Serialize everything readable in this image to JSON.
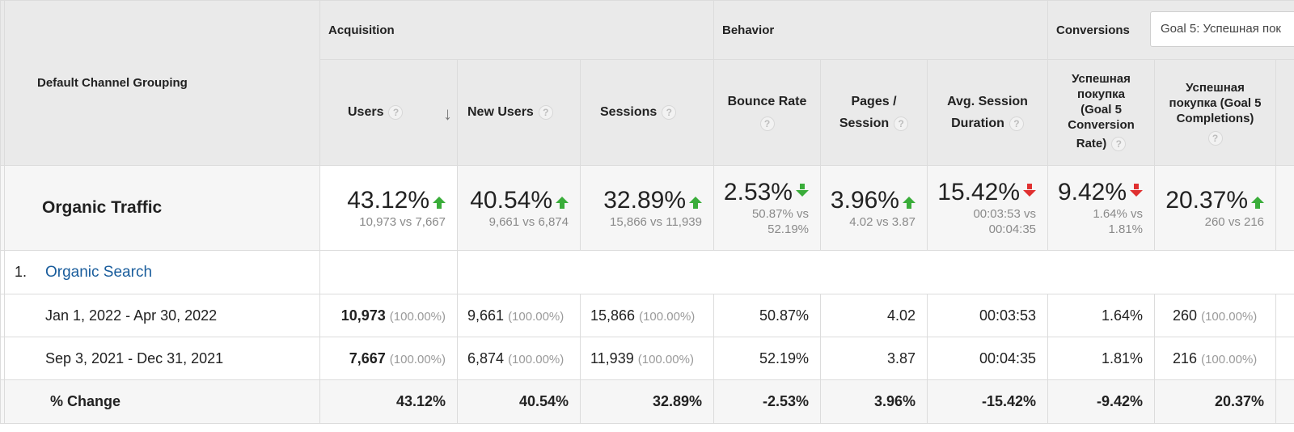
{
  "header": {
    "dimension_label": "Default Channel Grouping",
    "groups": {
      "acquisition": "Acquisition",
      "behavior": "Behavior",
      "conversions": "Conversions"
    },
    "goal_select": "Goal 5: Успешная пок",
    "columns": {
      "users": "Users",
      "new_users": "New Users",
      "sessions": "Sessions",
      "bounce_rate": "Bounce Rate",
      "pages_session_1": "Pages /",
      "pages_session_2": "Session",
      "avg_session_1": "Avg. Session",
      "avg_session_2": "Duration",
      "goal_rate_1": "Успешная",
      "goal_rate_2": "покупка",
      "goal_rate_3": "(Goal 5",
      "goal_rate_4": "Conversion",
      "goal_rate_5": "Rate)",
      "goal_comp_1": "Успешная",
      "goal_comp_2": "покупка (Goal 5",
      "goal_comp_3": "Completions)"
    },
    "help_glyph": "?",
    "sort_glyph": "↓"
  },
  "summary": {
    "label": "Organic Traffic",
    "users": {
      "value": "43.12%",
      "compare": "10,973 vs 7,667",
      "trend": "up-green"
    },
    "new_users": {
      "value": "40.54%",
      "compare": "9,661 vs 6,874",
      "trend": "up-green"
    },
    "sessions": {
      "value": "32.89%",
      "compare": "15,866 vs 11,939",
      "trend": "up-green"
    },
    "bounce_rate": {
      "value": "2.53%",
      "compare_1": "50.87% vs",
      "compare_2": "52.19%",
      "trend": "down-green"
    },
    "pages_session": {
      "value": "3.96%",
      "compare": "4.02 vs 3.87",
      "trend": "up-green"
    },
    "avg_session": {
      "value": "15.42%",
      "compare_1": "00:03:53 vs",
      "compare_2": "00:04:35",
      "trend": "down-red"
    },
    "goal_rate": {
      "value": "9.42%",
      "compare_1": "1.64% vs",
      "compare_2": "1.81%",
      "trend": "down-red"
    },
    "goal_comp": {
      "value": "20.37%",
      "compare": "260 vs 216",
      "trend": "up-green"
    }
  },
  "channel": {
    "index": "1.",
    "name": "Organic Search"
  },
  "rows": [
    {
      "label": "Jan 1, 2022 - Apr 30, 2022",
      "users": "10,973",
      "users_pct": "(100.00%)",
      "new_users": "9,661",
      "new_users_pct": "(100.00%)",
      "sessions": "15,866",
      "sessions_pct": "(100.00%)",
      "bounce_rate": "50.87%",
      "pages_session": "4.02",
      "avg_session": "00:03:53",
      "goal_rate": "1.64%",
      "goal_comp": "260",
      "goal_comp_pct": "(100.00%)"
    },
    {
      "label": "Sep 3, 2021 - Dec 31, 2021",
      "users": "7,667",
      "users_pct": "(100.00%)",
      "new_users": "6,874",
      "new_users_pct": "(100.00%)",
      "sessions": "11,939",
      "sessions_pct": "(100.00%)",
      "bounce_rate": "52.19%",
      "pages_session": "3.87",
      "avg_session": "00:04:35",
      "goal_rate": "1.81%",
      "goal_comp": "216",
      "goal_comp_pct": "(100.00%)"
    }
  ],
  "change": {
    "label": "% Change",
    "users": "43.12%",
    "new_users": "40.54%",
    "sessions": "32.89%",
    "bounce_rate": "-2.53%",
    "pages_session": "3.96%",
    "avg_session": "-15.42%",
    "goal_rate": "-9.42%",
    "goal_comp": "20.37%"
  },
  "colors": {
    "up": "#3aad3a",
    "down_bad": "#e03030",
    "link": "#1a5d9c",
    "header_bg": "#eaeaea"
  }
}
